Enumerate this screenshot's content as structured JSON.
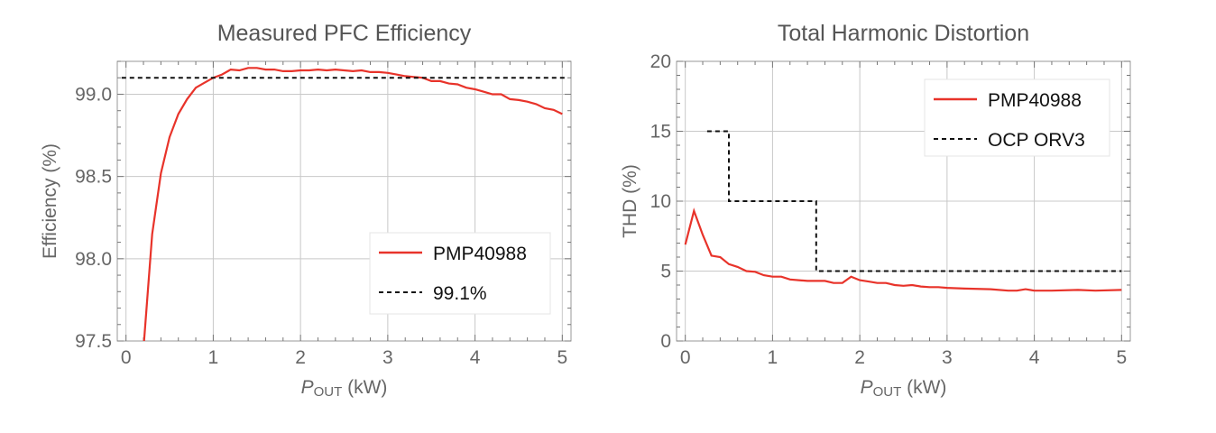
{
  "colors": {
    "series": "#e8332a",
    "ref": "#111111",
    "grid": "#c8c8c8",
    "frame": "#999999"
  },
  "chart_data": [
    {
      "type": "line",
      "title": "Measured PFC Efficiency",
      "xlabel_main": "P",
      "xlabel_sub": "OUT",
      "xlabel_unit": " (kW)",
      "ylabel": "Efficiency (%)",
      "xlim": [
        -0.1,
        5.1
      ],
      "ylim": [
        97.5,
        99.2
      ],
      "xticks": [
        0,
        1,
        2,
        3,
        4,
        5
      ],
      "xtick_labels": [
        "0",
        "1",
        "2",
        "3",
        "4",
        "5"
      ],
      "yticks": [
        97.5,
        98.0,
        98.5,
        99.0
      ],
      "ytick_labels": [
        "97.5",
        "98.0",
        "98.5",
        "99.0"
      ],
      "grid": true,
      "legend_position": "lower-right",
      "series": [
        {
          "name": "PMP40988",
          "style": "solid",
          "x": [
            0.2,
            0.3,
            0.4,
            0.5,
            0.6,
            0.7,
            0.8,
            0.9,
            1.0,
            1.1,
            1.2,
            1.3,
            1.4,
            1.5,
            1.6,
            1.7,
            1.8,
            1.9,
            2.0,
            2.1,
            2.2,
            2.3,
            2.4,
            2.5,
            2.6,
            2.7,
            2.8,
            2.9,
            3.0,
            3.1,
            3.2,
            3.3,
            3.4,
            3.5,
            3.6,
            3.7,
            3.8,
            3.9,
            4.0,
            4.1,
            4.2,
            4.3,
            4.4,
            4.5,
            4.6,
            4.7,
            4.8,
            4.9,
            5.0
          ],
          "y": [
            97.45,
            98.15,
            98.52,
            98.74,
            98.88,
            98.97,
            99.04,
            99.07,
            99.1,
            99.12,
            99.15,
            99.145,
            99.16,
            99.16,
            99.15,
            99.15,
            99.14,
            99.14,
            99.145,
            99.145,
            99.15,
            99.145,
            99.15,
            99.145,
            99.14,
            99.145,
            99.135,
            99.135,
            99.13,
            99.12,
            99.11,
            99.105,
            99.1,
            99.08,
            99.08,
            99.065,
            99.06,
            99.04,
            99.03,
            99.015,
            99.0,
            99.0,
            98.97,
            98.965,
            98.955,
            98.94,
            98.915,
            98.905,
            98.88
          ]
        },
        {
          "name": "99.1%",
          "style": "dashed",
          "x": [
            -0.05,
            5.05
          ],
          "y": [
            99.1,
            99.1
          ]
        }
      ]
    },
    {
      "type": "line",
      "title": "Total Harmonic Distortion",
      "xlabel_main": "P",
      "xlabel_sub": "OUT",
      "xlabel_unit": " (kW)",
      "ylabel": "THD (%)",
      "xlim": [
        -0.1,
        5.1
      ],
      "ylim": [
        0,
        20
      ],
      "xticks": [
        0,
        1,
        2,
        3,
        4,
        5
      ],
      "xtick_labels": [
        "0",
        "1",
        "2",
        "3",
        "4",
        "5"
      ],
      "yticks": [
        0,
        5,
        10,
        15,
        20
      ],
      "ytick_labels": [
        "0",
        "5",
        "10",
        "15",
        "20"
      ],
      "grid": true,
      "legend_position": "top-right",
      "series": [
        {
          "name": "PMP40988",
          "style": "solid",
          "x": [
            0,
            0.1,
            0.2,
            0.3,
            0.4,
            0.5,
            0.6,
            0.7,
            0.8,
            0.9,
            1.0,
            1.1,
            1.2,
            1.3,
            1.4,
            1.5,
            1.6,
            1.7,
            1.8,
            1.9,
            2.0,
            2.1,
            2.2,
            2.3,
            2.4,
            2.5,
            2.6,
            2.7,
            2.8,
            2.9,
            3.0,
            3.2,
            3.5,
            3.7,
            3.8,
            3.9,
            4.0,
            4.2,
            4.5,
            4.7,
            5.0
          ],
          "y": [
            6.9,
            9.3,
            7.6,
            6.1,
            6.0,
            5.5,
            5.3,
            5.0,
            4.95,
            4.7,
            4.6,
            4.6,
            4.4,
            4.35,
            4.3,
            4.3,
            4.3,
            4.15,
            4.15,
            4.6,
            4.35,
            4.25,
            4.15,
            4.15,
            4.0,
            3.95,
            4.0,
            3.9,
            3.85,
            3.85,
            3.8,
            3.75,
            3.7,
            3.6,
            3.6,
            3.7,
            3.6,
            3.6,
            3.65,
            3.6,
            3.65
          ]
        },
        {
          "name": "OCP ORV3",
          "style": "dashed",
          "x": [
            0.25,
            0.5,
            0.5,
            1.5,
            1.5,
            5.0
          ],
          "y": [
            15,
            15,
            10,
            10,
            5,
            5
          ]
        }
      ]
    }
  ]
}
